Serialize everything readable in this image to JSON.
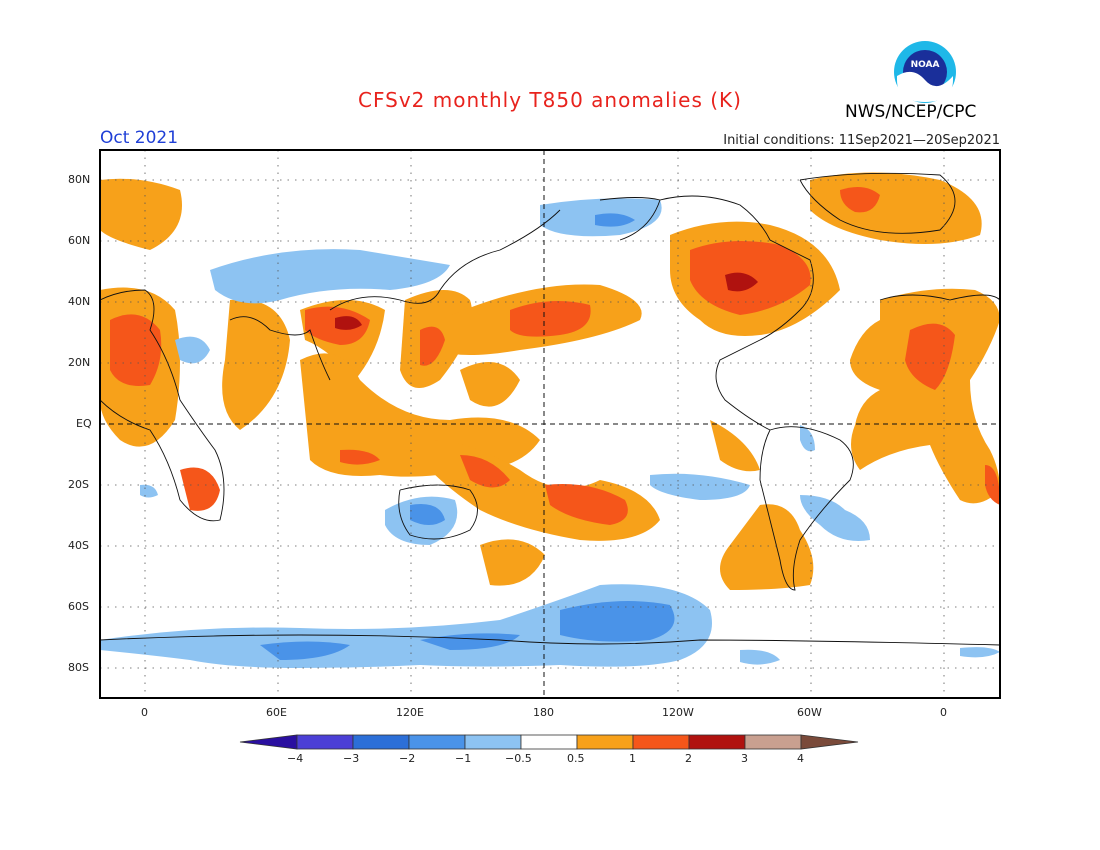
{
  "header": {
    "title": "CFSv2 monthly T850 anomalies (K)",
    "month": "Oct 2021",
    "initial_conditions": "Initial conditions: 11Sep2021—20Sep2021",
    "org": "NWS/NCEP/CPC",
    "logo_text": "NOAA"
  },
  "axes": {
    "lat_labels": [
      "80N",
      "60N",
      "40N",
      "20N",
      "EQ",
      "20S",
      "40S",
      "60S",
      "80S"
    ],
    "lon_labels": [
      "0",
      "60E",
      "120E",
      "180",
      "120W",
      "60W",
      "0"
    ]
  },
  "colorbar": {
    "labels": [
      "−4",
      "−3",
      "−2",
      "−1",
      "−0.5",
      "0.5",
      "1",
      "2",
      "3",
      "4"
    ],
    "colors": [
      "#2a0fa0",
      "#4b3fd6",
      "#2c6fd8",
      "#4a93e8",
      "#8dc3f2",
      "#ffffff",
      "#f7a11a",
      "#f5561a",
      "#b0120f",
      "#c9a090",
      "#7a4a3a"
    ]
  },
  "colors": {
    "pos1": "#f7a11a",
    "pos2": "#f5561a",
    "pos3": "#b0120f",
    "neg1": "#8dc3f2",
    "neg2": "#4a93e8"
  }
}
